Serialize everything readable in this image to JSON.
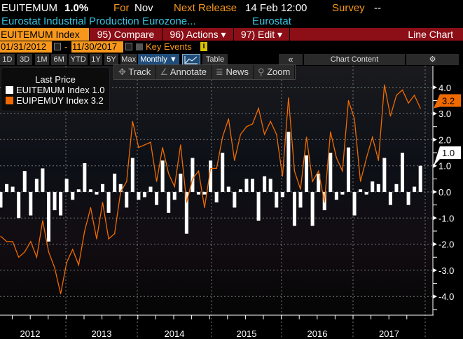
{
  "header": {
    "ticker": "EUITEMUM",
    "value": "1.0%",
    "for_label": "For",
    "for_value": "Nov",
    "next_label": "Next Release",
    "next_value": "14 Feb 12:00",
    "survey_label": "Survey",
    "survey_value": "--",
    "description": "Eurostat Industrial Production Eurozone...",
    "source": "Eurostat"
  },
  "menubar": {
    "security": "EUITEMUM Index",
    "compare": "95) Compare",
    "actions": "96) Actions ▾",
    "edit": "97) Edit ▾",
    "chart_type": "Line Chart"
  },
  "dates": {
    "start": "01/31/2012",
    "sep": "-",
    "end": "11/30/2017",
    "key_events": "Key Events",
    "info": "i"
  },
  "periods": [
    "1D",
    "3D",
    "1M",
    "6M",
    "YTD",
    "1Y",
    "5Y",
    "Max"
  ],
  "frequency": "Monthly ▼",
  "table_label": "Table",
  "collapse": "«",
  "chart_content": "Chart Content",
  "gear": "⚙",
  "toolbar": {
    "track": "Track",
    "annotate": "Annotate",
    "news": "News",
    "zoom": "Zoom"
  },
  "colors": {
    "accent": "#f7981d",
    "line": "#f06a00",
    "bar": "#ffffff",
    "menubar": "#8c0e16",
    "cyan": "#37c3e0"
  },
  "chart_data": {
    "type": "bar+line",
    "title": "Last Price",
    "x_start": "2012-01",
    "x_end": "2017-11",
    "year_labels": [
      "2012",
      "2013",
      "2014",
      "2015",
      "2016",
      "2017"
    ],
    "ylim": [
      -4.6,
      4.8
    ],
    "y_ticks": [
      "4.0",
      "3.0",
      "2.0",
      "1.0",
      "0.0",
      "-1.0",
      "-2.0",
      "-3.0",
      "-4.0"
    ],
    "grid": true,
    "legend_position": "top-left",
    "series": [
      {
        "name": "EUITEMUM Index",
        "last": "1.0",
        "type": "bar",
        "color": "#ffffff",
        "values": [
          -0.6,
          0.3,
          0.2,
          -1.0,
          0.8,
          -0.9,
          0.5,
          0.9,
          -1.9,
          -0.7,
          -0.9,
          0.5,
          -0.3,
          0.1,
          1.1,
          0.1,
          -0.1,
          0.3,
          -0.8,
          0.7,
          0.3,
          -0.6,
          1.3,
          -0.3,
          -0.2,
          0.2,
          -0.5,
          1.2,
          -0.8,
          -0.3,
          0.7,
          -1.6,
          1.3,
          -0.1,
          -0.1,
          1.2,
          -0.4,
          1.5,
          0.2,
          -0.6,
          0.1,
          0.5,
          0.5,
          -1.1,
          0.6,
          0.5,
          -0.6,
          -0.2,
          2.3,
          -1.3,
          -0.6,
          1.4,
          -1.3,
          0.7,
          -0.7,
          1.5,
          -0.3,
          -0.1,
          1.7,
          -0.9,
          0.1,
          -0.1,
          0.4,
          0.3,
          1.3,
          -0.5,
          0.3,
          1.5,
          -0.5,
          0.2,
          1.0
        ]
      },
      {
        "name": "EUIPEMUY Index",
        "last": "3.2",
        "type": "line",
        "color": "#f06a00",
        "values": [
          -1.7,
          -1.9,
          -1.9,
          -2.5,
          -2.3,
          -1.9,
          -2.5,
          -1.1,
          -2.3,
          -2.9,
          -3.9,
          -2.7,
          -2.2,
          -2.8,
          -1.5,
          -0.6,
          -1.8,
          -0.4,
          -1.8,
          -1.6,
          0.0,
          0.4,
          2.7,
          1.7,
          1.8,
          1.9,
          0.4,
          1.7,
          0.7,
          0.2,
          1.8,
          -0.4,
          0.5,
          0.8,
          -0.6,
          0.9,
          0.9,
          2.1,
          2.8,
          1.2,
          2.2,
          2.5,
          2.6,
          3.2,
          2.2,
          2.7,
          2.2,
          0.6,
          3.6,
          0.8,
          0.1,
          2.1,
          0.4,
          0.8,
          -0.4,
          2.3,
          1.3,
          0.8,
          3.5,
          2.8,
          0.4,
          1.3,
          2.1,
          1.2,
          4.1,
          2.9,
          3.7,
          3.9,
          3.4,
          3.7,
          3.2
        ]
      }
    ]
  }
}
